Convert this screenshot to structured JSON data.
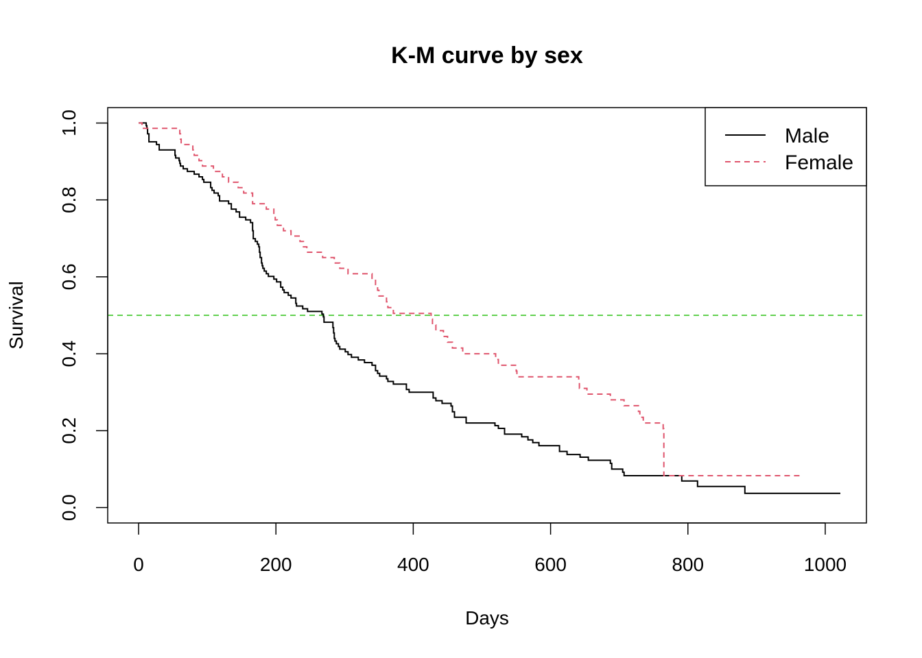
{
  "chart_data": {
    "type": "line",
    "step": true,
    "title": "K-M curve by sex",
    "xlabel": "Days",
    "ylabel": "Survival",
    "xlim": [
      -45,
      1060
    ],
    "ylim": [
      -0.04,
      1.04
    ],
    "x_ticks": [
      0,
      200,
      400,
      600,
      800,
      1000
    ],
    "y_ticks": [
      0.0,
      0.2,
      0.4,
      0.6,
      0.8,
      1.0
    ],
    "x_tick_labels": [
      "0",
      "200",
      "400",
      "600",
      "800",
      "1000"
    ],
    "y_tick_labels": [
      "0.0",
      "0.2",
      "0.4",
      "0.6",
      "0.8",
      "1.0"
    ],
    "grid": false,
    "legend_position": "top-right",
    "reference_line": {
      "y": 0.5,
      "color": "#61D04F",
      "style": "dashed"
    },
    "series": [
      {
        "name": "Male",
        "color": "#000000",
        "style": "solid",
        "x": [
          0,
          11,
          12,
          13,
          15,
          26,
          30,
          53,
          54,
          59,
          60,
          61,
          65,
          71,
          81,
          88,
          93,
          95,
          105,
          107,
          110,
          116,
          118,
          131,
          135,
          142,
          147,
          156,
          163,
          166,
          167,
          170,
          173,
          175,
          176,
          177,
          179,
          180,
          181,
          183,
          186,
          189,
          197,
          201,
          207,
          210,
          212,
          218,
          222,
          229,
          230,
          239,
          246,
          267,
          269,
          270,
          283,
          284,
          285,
          286,
          288,
          291,
          293,
          301,
          305,
          310,
          320,
          329,
          340,
          345,
          348,
          351,
          361,
          363,
          371,
          390,
          394,
          429,
          433,
          442,
          455,
          457,
          460,
          477,
          519,
          524,
          533,
          558,
          567,
          574,
          583,
          613,
          624,
          643,
          655,
          687,
          689,
          705,
          707,
          791,
          814,
          883,
          1022
        ],
        "y": [
          1.0,
          0.993,
          0.986,
          0.972,
          0.951,
          0.944,
          0.93,
          0.916,
          0.909,
          0.902,
          0.895,
          0.888,
          0.881,
          0.874,
          0.867,
          0.86,
          0.853,
          0.846,
          0.832,
          0.825,
          0.818,
          0.811,
          0.797,
          0.79,
          0.776,
          0.769,
          0.755,
          0.748,
          0.741,
          0.72,
          0.699,
          0.692,
          0.685,
          0.678,
          0.664,
          0.65,
          0.636,
          0.629,
          0.622,
          0.615,
          0.608,
          0.601,
          0.594,
          0.587,
          0.573,
          0.566,
          0.559,
          0.552,
          0.545,
          0.531,
          0.524,
          0.517,
          0.51,
          0.503,
          0.496,
          0.482,
          0.468,
          0.454,
          0.44,
          0.433,
          0.426,
          0.419,
          0.412,
          0.405,
          0.398,
          0.391,
          0.384,
          0.377,
          0.37,
          0.356,
          0.349,
          0.342,
          0.335,
          0.328,
          0.321,
          0.307,
          0.3,
          0.285,
          0.278,
          0.271,
          0.264,
          0.249,
          0.235,
          0.22,
          0.213,
          0.206,
          0.191,
          0.184,
          0.176,
          0.169,
          0.161,
          0.146,
          0.138,
          0.131,
          0.123,
          0.115,
          0.1,
          0.092,
          0.083,
          0.069,
          0.055,
          0.037,
          0.037
        ]
      },
      {
        "name": "Female",
        "color": "#DF536B",
        "style": "dashed",
        "x": [
          0,
          5,
          60,
          61,
          62,
          79,
          81,
          88,
          93,
          109,
          122,
          131,
          145,
          153,
          166,
          186,
          197,
          199,
          202,
          211,
          222,
          235,
          240,
          245,
          268,
          285,
          293,
          305,
          340,
          345,
          348,
          350,
          361,
          363,
          371,
          426,
          428,
          433,
          444,
          450,
          457,
          472,
          520,
          524,
          550,
          551,
          641,
          642,
          653,
          687,
          707,
          728,
          730,
          735,
          764,
          765,
          965
        ],
        "y": [
          1.0,
          0.986,
          0.972,
          0.958,
          0.944,
          0.93,
          0.916,
          0.902,
          0.888,
          0.874,
          0.86,
          0.846,
          0.832,
          0.818,
          0.79,
          0.776,
          0.762,
          0.748,
          0.734,
          0.72,
          0.706,
          0.692,
          0.678,
          0.664,
          0.65,
          0.636,
          0.622,
          0.608,
          0.594,
          0.58,
          0.565,
          0.55,
          0.535,
          0.52,
          0.505,
          0.49,
          0.475,
          0.46,
          0.445,
          0.43,
          0.415,
          0.4,
          0.385,
          0.37,
          0.355,
          0.34,
          0.325,
          0.31,
          0.295,
          0.28,
          0.265,
          0.25,
          0.235,
          0.22,
          0.205,
          0.083,
          0.083
        ]
      }
    ]
  }
}
